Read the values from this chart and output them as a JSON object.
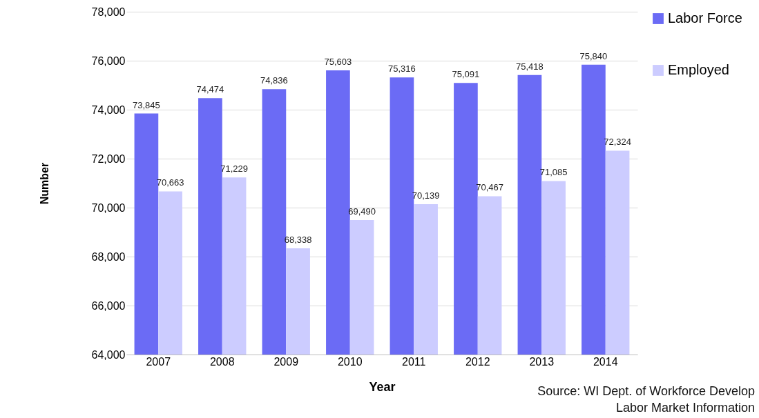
{
  "chart_data": {
    "type": "bar",
    "xlabel": "Year",
    "ylabel": "Number",
    "categories": [
      "2007",
      "2008",
      "2009",
      "2010",
      "2011",
      "2012",
      "2013",
      "2014"
    ],
    "series": [
      {
        "name": "Labor Force",
        "color": "#6b6bf5",
        "values": [
          73845,
          74474,
          74836,
          75603,
          75316,
          75091,
          75418,
          75840
        ],
        "value_labels": [
          "73,845",
          "74,474",
          "74,836",
          "75,603",
          "75,316",
          "75,091",
          "75,418",
          "75,840"
        ]
      },
      {
        "name": "Employed",
        "color": "#ccccff",
        "values": [
          70663,
          71229,
          68338,
          69490,
          70139,
          70467,
          71085,
          72324
        ],
        "value_labels": [
          "70,663",
          "71,229",
          "68,338",
          "69,490",
          "70,139",
          "70,467",
          "71,085",
          "72,324"
        ]
      }
    ],
    "ylim": [
      64000,
      78000
    ],
    "yticks": [
      {
        "value": 64000,
        "label": "64,000"
      },
      {
        "value": 66000,
        "label": "66,000"
      },
      {
        "value": 68000,
        "label": "68,000"
      },
      {
        "value": 70000,
        "label": "70,000"
      },
      {
        "value": 72000,
        "label": "72,000"
      },
      {
        "value": 74000,
        "label": "74,000"
      },
      {
        "value": 76000,
        "label": "76,000"
      },
      {
        "value": 78000,
        "label": "78,000"
      }
    ],
    "grid": "y",
    "legend": "right",
    "annotations": [
      "Source: WI Dept. of Workforce Develop",
      "Labor Market Information"
    ]
  }
}
